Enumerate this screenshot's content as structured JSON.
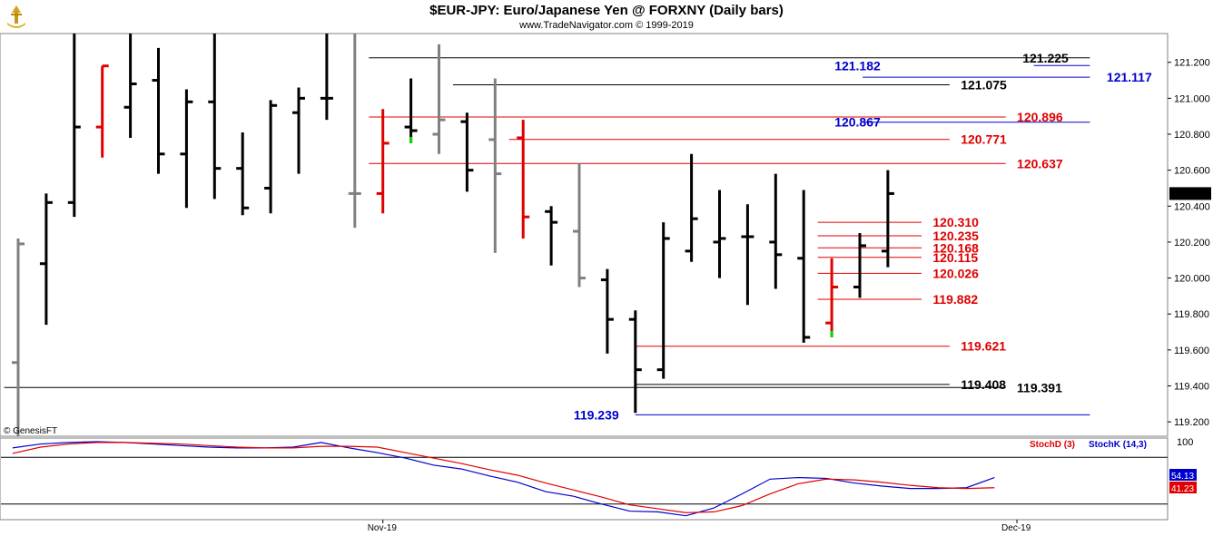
{
  "header": {
    "title": "$EUR-JPY:  Euro/Japanese Yen @ FORXNY  (Daily bars)",
    "subtitle": "www.TradeNavigator.com © 1999-2019"
  },
  "copyright_note": "© GenesisFT",
  "colors": {
    "up_bar": "#000000",
    "neutral_bar": "#808080",
    "red_bar": "#e00000",
    "green_tick": "#00dd00",
    "level_black": "#000000",
    "level_red": "#e00000",
    "level_blue": "#0000cc",
    "stoch_d": "#e00000",
    "stoch_k": "#0000cc"
  },
  "chart_data": [
    {
      "type": "ohlc",
      "name": "price",
      "y_axis_side": "right",
      "ylim": [
        119.12,
        121.36
      ],
      "y_ticks": [
        "121.200",
        "121.000",
        "120.800",
        "120.600",
        "120.400",
        "120.200",
        "120.000",
        "119.800",
        "119.600",
        "119.400",
        "119.200"
      ],
      "last_value_label": "120.467",
      "x_labels": [
        {
          "label": "Nov-19",
          "at_bar": 13
        },
        {
          "label": "Dec-19",
          "at_bar": 35.6
        }
      ],
      "bars": [
        {
          "o": 119.53,
          "h": 120.22,
          "l": 119.12,
          "c": 120.19,
          "color": "gray"
        },
        {
          "o": 120.08,
          "h": 120.47,
          "l": 119.74,
          "c": 120.42,
          "color": "black"
        },
        {
          "o": 120.42,
          "h": 121.36,
          "l": 120.34,
          "c": 120.84,
          "color": "black"
        },
        {
          "o": 120.84,
          "h": 121.18,
          "l": 120.67,
          "c": 121.18,
          "color": "red"
        },
        {
          "o": 120.95,
          "h": 121.36,
          "l": 120.78,
          "c": 121.08,
          "color": "black"
        },
        {
          "o": 121.1,
          "h": 121.28,
          "l": 120.58,
          "c": 120.69,
          "color": "black"
        },
        {
          "o": 120.69,
          "h": 121.05,
          "l": 120.39,
          "c": 120.98,
          "color": "black"
        },
        {
          "o": 120.98,
          "h": 121.36,
          "l": 120.44,
          "c": 120.61,
          "color": "black"
        },
        {
          "o": 120.61,
          "h": 120.81,
          "l": 120.35,
          "c": 120.39,
          "color": "black"
        },
        {
          "o": 120.5,
          "h": 120.99,
          "l": 120.36,
          "c": 120.96,
          "color": "black"
        },
        {
          "o": 120.92,
          "h": 121.06,
          "l": 120.58,
          "c": 121.0,
          "color": "black"
        },
        {
          "o": 121.0,
          "h": 121.36,
          "l": 120.88,
          "c": 121.0,
          "color": "black"
        },
        {
          "o": 120.47,
          "h": 121.36,
          "l": 120.28,
          "c": 120.47,
          "color": "gray"
        },
        {
          "o": 120.47,
          "h": 120.94,
          "l": 120.36,
          "c": 120.75,
          "color": "red"
        },
        {
          "o": 120.84,
          "h": 121.11,
          "l": 120.75,
          "c": 120.82,
          "color": "black",
          "low_tick": "green"
        },
        {
          "o": 120.8,
          "h": 121.3,
          "l": 120.69,
          "c": 120.88,
          "color": "gray"
        },
        {
          "o": 120.87,
          "h": 120.92,
          "l": 120.48,
          "c": 120.6,
          "color": "black"
        },
        {
          "o": 120.77,
          "h": 121.11,
          "l": 120.14,
          "c": 120.58,
          "color": "gray"
        },
        {
          "o": 120.78,
          "h": 120.88,
          "l": 120.22,
          "c": 120.34,
          "color": "red"
        },
        {
          "o": 120.37,
          "h": 120.4,
          "l": 120.07,
          "c": 120.31,
          "color": "black"
        },
        {
          "o": 120.26,
          "h": 120.64,
          "l": 119.95,
          "c": 120.0,
          "color": "gray"
        },
        {
          "o": 119.99,
          "h": 120.05,
          "l": 119.58,
          "c": 119.77,
          "color": "black"
        },
        {
          "o": 119.77,
          "h": 119.82,
          "l": 119.25,
          "c": 119.49,
          "color": "black"
        },
        {
          "o": 119.49,
          "h": 120.31,
          "l": 119.44,
          "c": 120.22,
          "color": "black"
        },
        {
          "o": 120.15,
          "h": 120.69,
          "l": 120.09,
          "c": 120.33,
          "color": "black"
        },
        {
          "o": 120.2,
          "h": 120.49,
          "l": 120.0,
          "c": 120.22,
          "color": "black"
        },
        {
          "o": 120.23,
          "h": 120.41,
          "l": 119.85,
          "c": 120.23,
          "color": "black"
        },
        {
          "o": 120.2,
          "h": 120.58,
          "l": 119.94,
          "c": 120.13,
          "color": "black"
        },
        {
          "o": 120.11,
          "h": 120.49,
          "l": 119.64,
          "c": 119.67,
          "color": "black"
        },
        {
          "o": 119.75,
          "h": 120.11,
          "l": 119.67,
          "c": 119.95,
          "color": "red",
          "low_tick": "green"
        },
        {
          "o": 119.95,
          "h": 120.25,
          "l": 119.89,
          "c": 120.18,
          "color": "black"
        },
        {
          "o": 120.15,
          "h": 120.6,
          "l": 120.06,
          "c": 120.47,
          "color": "black"
        }
      ],
      "levels": [
        {
          "value": 121.225,
          "label": "121.225",
          "color": "black",
          "from_bar": 12.5,
          "to_bar": 38.2,
          "label_at_bar": 35.8
        },
        {
          "value": 121.182,
          "label": "121.182",
          "color": "blue",
          "from_bar": 36.2,
          "to_bar": 38.2,
          "label_at_bar": 29.1
        },
        {
          "value": 121.117,
          "label": "121.117",
          "color": "blue",
          "from_bar": 30.1,
          "to_bar": 38.2,
          "label_at_bar": 38.8
        },
        {
          "value": 121.075,
          "label": "121.075",
          "color": "black",
          "from_bar": 15.5,
          "to_bar": 33.2,
          "label_at_bar": 33.6
        },
        {
          "value": 120.896,
          "label": "120.896",
          "color": "red",
          "from_bar": 12.5,
          "to_bar": 35.2,
          "label_at_bar": 35.6
        },
        {
          "value": 120.867,
          "label": "120.867",
          "color": "blue",
          "from_bar": 30.1,
          "to_bar": 38.2,
          "label_at_bar": 29.1
        },
        {
          "value": 120.771,
          "label": "120.771",
          "color": "red",
          "from_bar": 17.5,
          "to_bar": 33.2,
          "label_at_bar": 33.6
        },
        {
          "value": 120.637,
          "label": "120.637",
          "color": "red",
          "from_bar": 12.5,
          "to_bar": 35.2,
          "label_at_bar": 35.6
        },
        {
          "value": 120.31,
          "label": "120.310",
          "color": "red",
          "from_bar": 28.5,
          "to_bar": 32.2,
          "label_at_bar": 32.6
        },
        {
          "value": 120.235,
          "label": "120.235",
          "color": "red",
          "from_bar": 28.5,
          "to_bar": 32.2,
          "label_at_bar": 32.6
        },
        {
          "value": 120.168,
          "label": "120.168",
          "color": "red",
          "from_bar": 28.5,
          "to_bar": 32.2,
          "label_at_bar": 32.6
        },
        {
          "value": 120.115,
          "label": "120.115",
          "color": "red",
          "from_bar": 28.5,
          "to_bar": 32.2,
          "label_at_bar": 32.6
        },
        {
          "value": 120.026,
          "label": "120.026",
          "color": "red",
          "from_bar": 28.5,
          "to_bar": 32.2,
          "label_at_bar": 32.6
        },
        {
          "value": 119.882,
          "label": "119.882",
          "color": "red",
          "from_bar": 28.5,
          "to_bar": 32.2,
          "label_at_bar": 32.6
        },
        {
          "value": 119.621,
          "label": "119.621",
          "color": "red",
          "from_bar": 22.0,
          "to_bar": 33.2,
          "label_at_bar": 33.6
        },
        {
          "value": 119.408,
          "label": "119.408",
          "color": "black",
          "from_bar": 22.0,
          "to_bar": 33.2,
          "label_at_bar": 33.6
        },
        {
          "value": 119.391,
          "label": "119.391",
          "color": "black",
          "from_bar": -0.5,
          "to_bar": 35.2,
          "label_at_bar": 35.6
        },
        {
          "value": 119.239,
          "label": "119.239",
          "color": "blue",
          "from_bar": 22.0,
          "to_bar": 38.2,
          "label_at_bar": 19.8
        }
      ]
    },
    {
      "type": "line",
      "name": "stochastic",
      "ylim": [
        0,
        100
      ],
      "y_ticks": [
        "100"
      ],
      "bands": [
        80,
        20
      ],
      "legend": [
        {
          "label": "StochD (3)",
          "color": "red"
        },
        {
          "label": "StochK (14,3)",
          "color": "blue"
        }
      ],
      "series": [
        {
          "name": "StochK (14,3)",
          "color": "blue",
          "last_label": "54.13",
          "values": [
            92,
            97,
            99,
            100,
            99,
            97,
            95,
            93,
            92,
            92,
            93,
            99,
            92,
            86,
            79,
            70,
            65,
            56,
            48,
            36,
            30,
            20,
            11,
            10,
            5,
            15,
            33,
            52,
            54,
            53,
            47,
            43,
            40,
            40,
            41,
            54
          ]
        },
        {
          "name": "StochD (3)",
          "color": "red",
          "last_label": "41.23",
          "values": [
            85,
            93,
            97,
            99,
            99,
            98,
            97,
            95,
            93,
            92,
            92,
            94,
            94,
            93,
            86,
            79,
            72,
            64,
            57,
            47,
            38,
            29,
            19,
            14,
            9,
            10,
            18,
            33,
            46,
            52,
            51,
            48,
            44,
            41,
            40,
            41
          ]
        }
      ]
    }
  ]
}
